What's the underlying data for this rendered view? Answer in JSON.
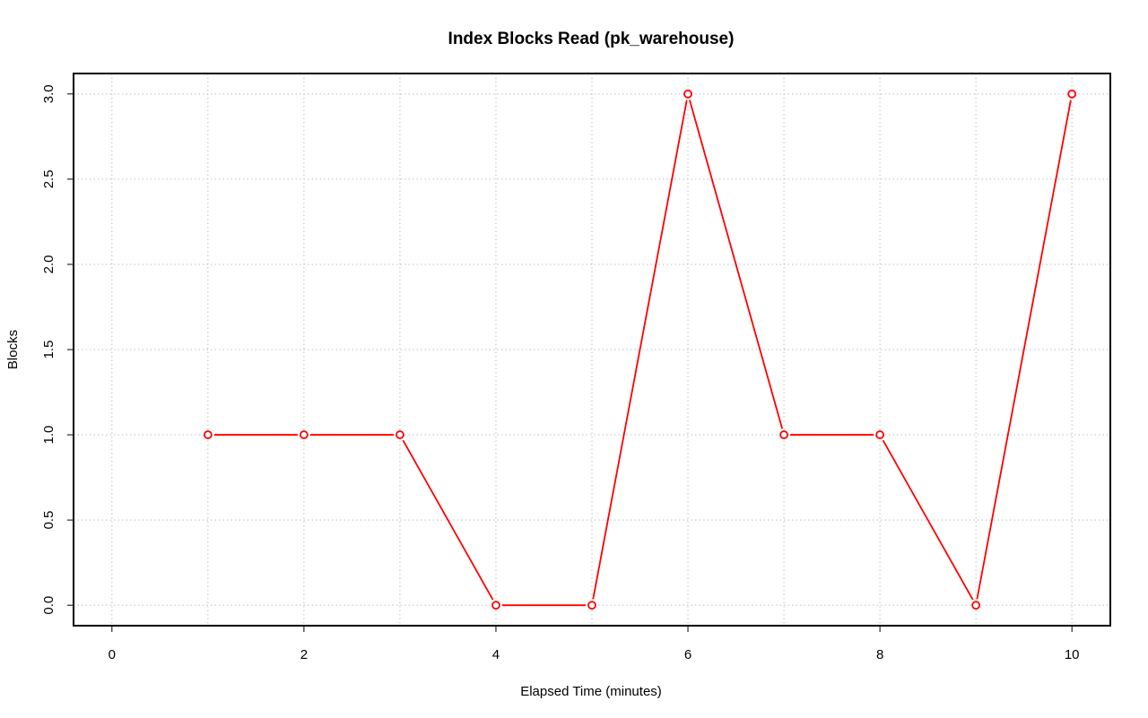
{
  "chart_data": {
    "type": "line",
    "title": "Index Blocks Read (pk_warehouse)",
    "xlabel": "Elapsed Time (minutes)",
    "ylabel": "Blocks",
    "x": [
      1,
      2,
      3,
      4,
      5,
      6,
      7,
      8,
      9,
      10
    ],
    "series": [
      {
        "values": [
          1,
          1,
          1,
          0,
          0,
          3,
          1,
          1,
          0,
          3
        ]
      }
    ],
    "xlim": [
      -0.4,
      10.4
    ],
    "ylim": [
      -0.12,
      3.12
    ],
    "x_ticks": [
      0,
      2,
      4,
      6,
      8,
      10
    ],
    "x_tick_labels": [
      "0",
      "2",
      "4",
      "6",
      "8",
      "10"
    ],
    "y_ticks": [
      0,
      0.5,
      1,
      1.5,
      2,
      2.5,
      3
    ],
    "y_tick_labels": [
      "0.0",
      "0.5",
      "1.0",
      "1.5",
      "2.0",
      "2.5",
      "3.0"
    ],
    "x_grid": [
      0,
      1,
      2,
      3,
      4,
      5,
      6,
      7,
      8,
      9,
      10
    ],
    "y_grid": [
      0,
      0.5,
      1,
      1.5,
      2,
      2.5,
      3
    ],
    "grid": true,
    "grid_color": "#bebebe",
    "line_color": "#ff0000",
    "marker": "open-circle"
  }
}
